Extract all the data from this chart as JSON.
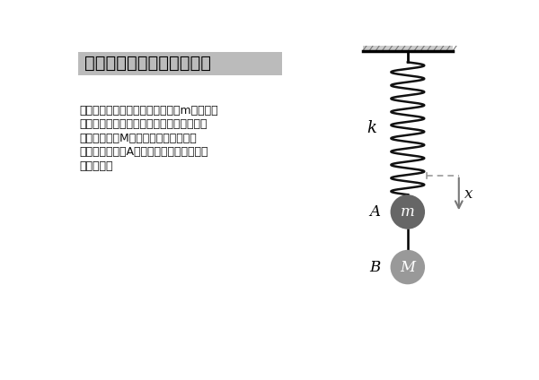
{
  "title": "複合物体に働く力の作用図",
  "title_box_color": "#bbbbbb",
  "title_text_color": "#000000",
  "body_lines": [
    "ばね定数ｋのばねに小球Ａ（質量m）がつな",
    "がれている。また、軽い糸を介してさらに",
    "小球Ｂ（質量M）がつながれている。",
    "このとき、小球A，Ｂに働く力の作用図を",
    "図示せよ。"
  ],
  "bg_color": "#ffffff",
  "spring_color": "#111111",
  "ceiling_fill": "#cccccc",
  "ceiling_hatch": "#777777",
  "ball_A_color": "#666666",
  "ball_B_color": "#999999",
  "ball_A_label": "m",
  "ball_B_label": "M",
  "label_A": "A",
  "label_B": "B",
  "label_k": "k",
  "label_x": "x",
  "arrow_color": "#777777",
  "dashed_color": "#999999",
  "text_color": "#111111"
}
